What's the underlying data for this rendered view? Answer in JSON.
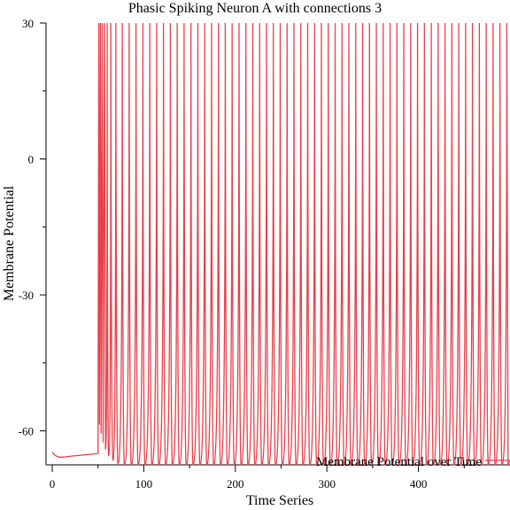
{
  "chart_data": {
    "type": "line",
    "title": "Phasic Spiking Neuron A with connections 3",
    "xlabel": "Time Series",
    "ylabel": "Membrane Potential",
    "xlim": [
      0,
      500
    ],
    "ylim": [
      -67.5,
      30
    ],
    "x_major_ticks": [
      0,
      100,
      200,
      300,
      400
    ],
    "x_minor_ticks": [
      50,
      150,
      250,
      350,
      450
    ],
    "y_major_ticks": [
      -60,
      -30,
      0,
      30
    ],
    "y_minor_ticks": [
      -45,
      -15,
      15
    ],
    "grid": false,
    "legend": {
      "placement": "bottom-right"
    },
    "series": [
      {
        "name": "Membrane Potential over Time",
        "color": "#e8404a",
        "rest_segment": {
          "x": [
            0,
            2,
            4,
            6,
            8,
            10,
            14,
            20,
            30,
            40,
            50
          ],
          "y": [
            -64.7,
            -65.2,
            -65.5,
            -65.7,
            -65.8,
            -65.8,
            -65.75,
            -65.6,
            -65.4,
            -65.2,
            -65.0
          ]
        },
        "stimulus_onset_x": 50,
        "spike_peak": 30,
        "spike_times": [
          50.9,
          52.6,
          54.6,
          57.0,
          60.0,
          64.0,
          69.5,
          76.5,
          84.0,
          91.5,
          99.0,
          106.5,
          114.0,
          121.5,
          129.0,
          136.5,
          144.0,
          151.5,
          159.0,
          166.5,
          174.0,
          181.5,
          189.0,
          196.5,
          204.0,
          211.5,
          219.0,
          226.5,
          234.0,
          241.5,
          249.0,
          256.5,
          264.0,
          271.5,
          279.0,
          286.5,
          294.0,
          301.5,
          309.0,
          316.5,
          324.0,
          331.5,
          339.0,
          346.5,
          354.0,
          361.5,
          369.0,
          376.5,
          384.0,
          391.5,
          399.0,
          406.5,
          414.0,
          421.5,
          429.0,
          436.5,
          444.0,
          451.5,
          459.0,
          466.5,
          474.0,
          481.5,
          489.0,
          496.5
        ],
        "trough_values": [
          -58.5,
          -60.5,
          -62.5,
          -64,
          -65.5,
          -66.5,
          -67.2,
          -67.5
        ]
      }
    ]
  }
}
